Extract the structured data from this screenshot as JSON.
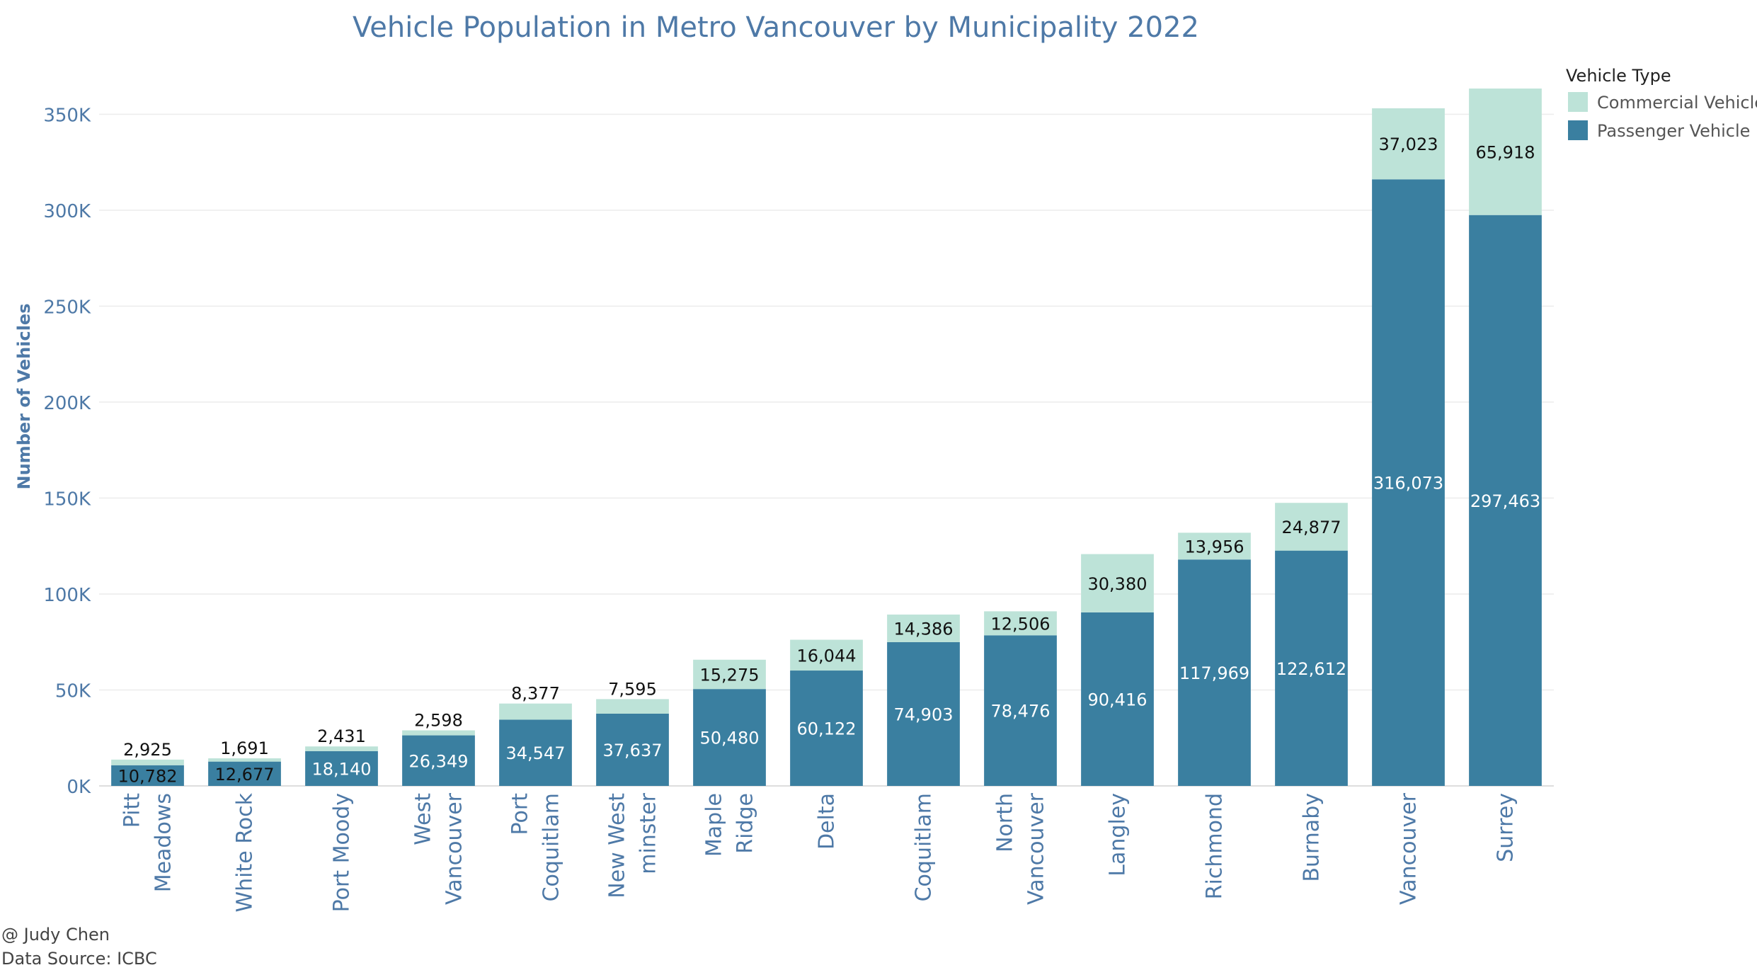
{
  "chart_data": {
    "type": "bar",
    "stacked": true,
    "title": "Vehicle Population in Metro Vancouver by Municipality 2022",
    "xlabel": "",
    "ylabel": "Number of Vehicles",
    "ylim": [
      0,
      380000
    ],
    "yticks": [
      0,
      50000,
      100000,
      150000,
      200000,
      250000,
      300000,
      350000
    ],
    "ytick_labels": [
      "0K",
      "50K",
      "100K",
      "150K",
      "200K",
      "250K",
      "300K",
      "350K"
    ],
    "grid": true,
    "legend_position": "top-right",
    "legend_title": "Vehicle Type",
    "categories": [
      [
        "Pitt",
        "Meadows"
      ],
      [
        "White Rock"
      ],
      [
        "Port Moody"
      ],
      [
        "West",
        "Vancouver"
      ],
      [
        "Port",
        "Coquitlam"
      ],
      [
        "New West",
        "minster"
      ],
      [
        "Maple",
        "Ridge"
      ],
      [
        "Delta"
      ],
      [
        "Coquitlam"
      ],
      [
        "North",
        "Vancouver"
      ],
      [
        "Langley"
      ],
      [
        "Richmond"
      ],
      [
        "Burnaby"
      ],
      [
        "Vancouver"
      ],
      [
        "Surrey"
      ]
    ],
    "series": [
      {
        "name": "Passenger Vehicle",
        "color": "#3a7fa0",
        "values": [
          10782,
          12677,
          18140,
          26349,
          34547,
          37637,
          50480,
          60122,
          74903,
          78476,
          90416,
          117969,
          122612,
          316073,
          297463
        ],
        "labels": [
          "10,782",
          "12,677",
          "18,140",
          "26,349",
          "34,547",
          "37,637",
          "50,480",
          "60,122",
          "74,903",
          "78,476",
          "90,416",
          "117,969",
          "122,612",
          "316,073",
          "297,463"
        ]
      },
      {
        "name": "Commercial Vehicle",
        "color": "#bde3d8",
        "values": [
          2925,
          1691,
          2431,
          2598,
          8377,
          7595,
          15275,
          16044,
          14386,
          12506,
          30380,
          13956,
          24877,
          37023,
          65918
        ],
        "labels": [
          "2,925",
          "1,691",
          "2,431",
          "2,598",
          "8,377",
          "7,595",
          "15,275",
          "16,044",
          "14,386",
          "12,506",
          "30,380",
          "13,956",
          "24,877",
          "37,023",
          "65,918"
        ]
      }
    ]
  },
  "legend_order": [
    "Commercial Vehicle",
    "Passenger Vehicle"
  ],
  "footer": {
    "author": "@ Judy Chen",
    "source": "Data Source: ICBC"
  }
}
